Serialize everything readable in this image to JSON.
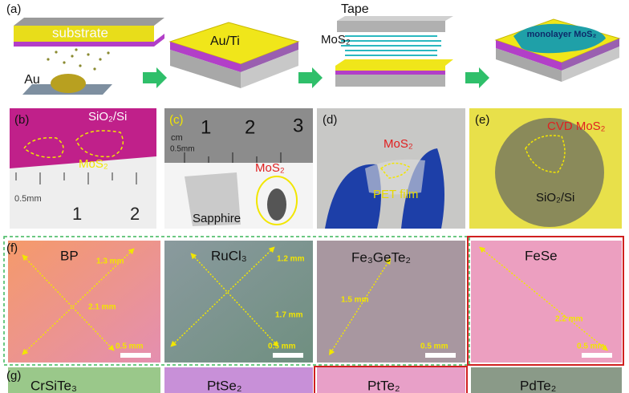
{
  "panel_a": {
    "label": "(a)",
    "substrate": "substrate",
    "source": "Au",
    "layer": "Au/Ti",
    "tape": "Tape",
    "flake": "MoS₂",
    "result": "monolayer MoS₂"
  },
  "panel_b": {
    "label": "(b)",
    "substrate": "SiO₂/Si",
    "flake": "MoS₂",
    "ruler_unit": "0.5mm",
    "ruler_ticks": [
      "1",
      "2"
    ]
  },
  "panel_c": {
    "label": "(c)",
    "ruler_unit_top": "cm",
    "ruler_ticks": [
      "1",
      "2",
      "3"
    ],
    "ruler_unit": "0.5mm",
    "flake": "MoS₂",
    "substrate": "Sapphire"
  },
  "panel_d": {
    "label": "(d)",
    "flake": "MoS₂",
    "substrate": "PET film"
  },
  "panel_e": {
    "label": "(e)",
    "flake": "CVD MoS₂",
    "substrate": "SiO₂/Si"
  },
  "panel_f": {
    "label": "(f)",
    "images": [
      {
        "material": "BP",
        "dims": [
          "1.3 mm",
          "2.1 mm"
        ],
        "scale": "0.5 mm"
      },
      {
        "material": "RuCl₃",
        "dims": [
          "1.2 mm",
          "1.7 mm"
        ],
        "scale": "0.5 mm"
      },
      {
        "material": "Fe₃GeTe₂",
        "dims": [
          "1.5 mm"
        ],
        "scale": "0.5 mm"
      },
      {
        "material": "FeSe",
        "dims": [
          "2.2 mm"
        ],
        "scale": "0.5 mm"
      }
    ]
  },
  "panel_g": {
    "label": "(g)",
    "materials": [
      "CrSiTe₃",
      "PtSe₂",
      "PtTe₂",
      "PdTe₂"
    ]
  }
}
